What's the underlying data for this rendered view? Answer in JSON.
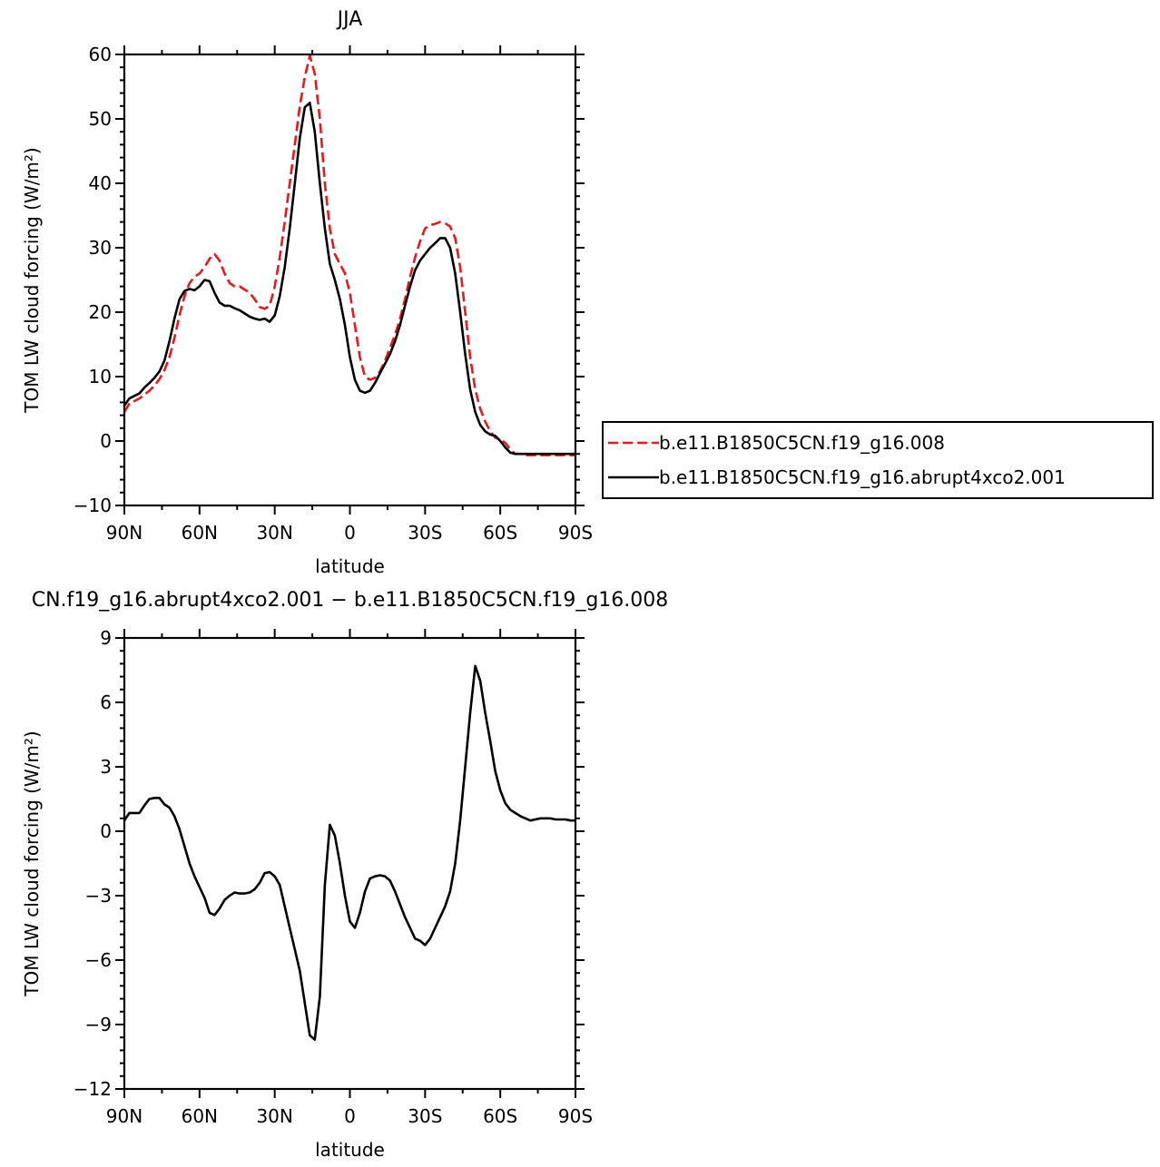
{
  "chart_data": [
    {
      "type": "line",
      "title": "JJA",
      "xlabel": "latitude",
      "ylabel": "TOM LW cloud forcing (W/m²)",
      "xlim": [
        90,
        -90
      ],
      "ylim": [
        -10,
        60
      ],
      "xticks": [
        90,
        60,
        30,
        0,
        -30,
        -60,
        -90
      ],
      "xtick_labels": [
        "90N",
        "60N",
        "30N",
        "0",
        "30S",
        "60S",
        "90S"
      ],
      "yticks": [
        -10,
        0,
        10,
        20,
        30,
        40,
        50,
        60
      ],
      "ytick_labels": [
        "−10",
        "0",
        "10",
        "20",
        "30",
        "40",
        "50",
        "60"
      ],
      "legend_position": "right",
      "series": [
        {
          "name": "b.e11.B1850C5CN.f19_g16.008",
          "color": "#e41a1c",
          "dash": "dashed",
          "x": [
            90,
            88,
            86,
            84,
            82,
            80,
            78,
            76,
            74,
            72,
            70,
            68,
            66,
            64,
            62,
            60,
            58,
            56,
            54,
            52,
            50,
            48,
            46,
            44,
            42,
            40,
            38,
            36,
            34,
            32,
            30,
            28,
            26,
            24,
            22,
            20,
            18,
            16,
            14,
            12,
            10,
            8,
            6,
            4,
            2,
            0,
            -2,
            -4,
            -6,
            -8,
            -10,
            -12,
            -14,
            -16,
            -18,
            -20,
            -22,
            -24,
            -26,
            -28,
            -30,
            -32,
            -34,
            -36,
            -38,
            -40,
            -42,
            -44,
            -46,
            -48,
            -50,
            -52,
            -54,
            -56,
            -58,
            -60,
            -62,
            -64,
            -66,
            -68,
            -70,
            -72,
            -74,
            -76,
            -78,
            -80,
            -82,
            -84,
            -86,
            -88,
            -90
          ],
          "y": [
            4.5,
            5.8,
            6.2,
            6.6,
            7.2,
            7.8,
            8.6,
            9.6,
            11.0,
            13.0,
            16.0,
            19.5,
            22.5,
            24.5,
            25.5,
            26.0,
            27.0,
            28.3,
            29.0,
            28.0,
            26.0,
            24.5,
            24.0,
            24.0,
            23.5,
            23.0,
            22.0,
            20.8,
            20.5,
            21.0,
            24.0,
            28.5,
            34.0,
            40.0,
            46.0,
            52.0,
            56.5,
            59.8,
            57.0,
            50.0,
            40.0,
            33.0,
            29.0,
            27.5,
            26.0,
            23.0,
            18.0,
            13.0,
            10.0,
            9.5,
            9.8,
            10.8,
            12.5,
            14.5,
            16.5,
            19.0,
            22.0,
            25.5,
            28.5,
            31.0,
            33.0,
            33.5,
            33.7,
            34.0,
            33.8,
            33.3,
            31.5,
            27.0,
            20.0,
            13.0,
            8.0,
            5.0,
            3.0,
            1.5,
            0.5,
            0.3,
            -0.3,
            -1.3,
            -2.0,
            -2.0,
            -2.2,
            -2.2,
            -2.2,
            -2.2,
            -2.2,
            -2.2,
            -2.2,
            -2.2,
            -2.2,
            -2.2,
            -2.2
          ]
        },
        {
          "name": "b.e11.B1850C5CN.f19_g16.abrupt4xco2.001",
          "color": "#000000",
          "dash": "solid",
          "x": [
            90,
            88,
            86,
            84,
            82,
            80,
            78,
            76,
            74,
            72,
            70,
            68,
            66,
            64,
            62,
            60,
            58,
            56,
            54,
            52,
            50,
            48,
            46,
            44,
            42,
            40,
            38,
            36,
            34,
            32,
            30,
            28,
            26,
            24,
            22,
            20,
            18,
            16,
            14,
            12,
            10,
            8,
            6,
            4,
            2,
            0,
            -2,
            -4,
            -6,
            -8,
            -10,
            -12,
            -14,
            -16,
            -18,
            -20,
            -22,
            -24,
            -26,
            -28,
            -30,
            -32,
            -34,
            -36,
            -38,
            -40,
            -42,
            -44,
            -46,
            -48,
            -50,
            -52,
            -54,
            -56,
            -58,
            -60,
            -62,
            -64,
            -66,
            -68,
            -70,
            -72,
            -74,
            -76,
            -78,
            -80,
            -82,
            -84,
            -86,
            -88,
            -90
          ],
          "y": [
            5.5,
            6.6,
            7.0,
            7.4,
            8.3,
            9.0,
            9.8,
            10.8,
            12.5,
            15.5,
            19.0,
            22.0,
            23.3,
            23.6,
            23.4,
            24.0,
            25.0,
            24.8,
            23.0,
            21.5,
            21.0,
            21.0,
            20.6,
            20.3,
            19.8,
            19.3,
            19.0,
            18.8,
            19.0,
            18.5,
            19.5,
            22.5,
            27.0,
            33.0,
            40.0,
            47.0,
            51.8,
            52.5,
            48.0,
            40.0,
            33.0,
            27.5,
            25.0,
            22.0,
            18.0,
            13.0,
            9.5,
            7.8,
            7.5,
            7.8,
            9.0,
            10.5,
            12.0,
            13.5,
            15.5,
            18.0,
            21.0,
            24.0,
            26.5,
            28.0,
            29.0,
            30.0,
            30.7,
            31.5,
            31.5,
            30.0,
            26.0,
            20.0,
            13.5,
            8.0,
            4.5,
            2.5,
            1.5,
            1.0,
            0.8,
            0.0,
            -1.0,
            -1.8,
            -2.0,
            -2.0,
            -2.0,
            -2.0,
            -2.0,
            -2.0,
            -2.0,
            -2.0,
            -2.0,
            -2.0,
            -2.0,
            -2.0,
            -2.0
          ]
        }
      ]
    },
    {
      "type": "line",
      "title": "CN.f19_g16.abrupt4xco2.001 − b.e11.B1850C5CN.f19_g16.008",
      "xlabel": "latitude",
      "ylabel": "TOM LW cloud forcing (W/m²)",
      "xlim": [
        90,
        -90
      ],
      "ylim": [
        -12,
        9
      ],
      "xticks": [
        90,
        60,
        30,
        0,
        -30,
        -60,
        -90
      ],
      "xtick_labels": [
        "90N",
        "60N",
        "30N",
        "0",
        "30S",
        "60S",
        "90S"
      ],
      "yticks": [
        -12,
        -9,
        -6,
        -3,
        0,
        3,
        6,
        9
      ],
      "ytick_labels": [
        "−12",
        "−9",
        "−6",
        "−3",
        "0",
        "3",
        "6",
        "9"
      ],
      "series": [
        {
          "color": "#000000",
          "dash": "solid",
          "x": [
            90,
            88,
            86,
            84,
            82,
            80,
            78,
            76,
            74,
            72,
            70,
            68,
            66,
            64,
            62,
            60,
            58,
            56,
            54,
            52,
            50,
            48,
            46,
            44,
            42,
            40,
            38,
            36,
            34,
            32,
            30,
            28,
            26,
            24,
            22,
            20,
            18,
            16,
            14,
            12,
            10,
            8,
            6,
            4,
            2,
            0,
            -2,
            -4,
            -6,
            -8,
            -10,
            -12,
            -14,
            -16,
            -18,
            -20,
            -22,
            -24,
            -26,
            -28,
            -30,
            -32,
            -34,
            -36,
            -38,
            -40,
            -42,
            -44,
            -46,
            -48,
            -50,
            -52,
            -54,
            -56,
            -58,
            -60,
            -62,
            -64,
            -66,
            -68,
            -70,
            -72,
            -74,
            -76,
            -78,
            -80,
            -82,
            -84,
            -86,
            -88,
            -90
          ],
          "y": [
            0.5,
            0.85,
            0.85,
            0.85,
            1.2,
            1.5,
            1.55,
            1.55,
            1.25,
            1.1,
            0.7,
            0.1,
            -0.7,
            -1.5,
            -2.1,
            -2.6,
            -3.1,
            -3.8,
            -3.9,
            -3.6,
            -3.2,
            -3.0,
            -2.85,
            -2.9,
            -2.9,
            -2.85,
            -2.7,
            -2.4,
            -1.95,
            -1.9,
            -2.1,
            -2.5,
            -3.5,
            -4.5,
            -5.5,
            -6.5,
            -8.0,
            -9.5,
            -9.7,
            -7.7,
            -2.5,
            0.3,
            -0.2,
            -1.5,
            -3.0,
            -4.2,
            -4.5,
            -3.8,
            -2.8,
            -2.2,
            -2.1,
            -2.05,
            -2.1,
            -2.3,
            -2.8,
            -3.4,
            -4.0,
            -4.5,
            -5.0,
            -5.1,
            -5.3,
            -5.0,
            -4.5,
            -4.0,
            -3.5,
            -2.8,
            -1.5,
            0.5,
            3.0,
            5.5,
            7.7,
            7.0,
            5.5,
            4.2,
            2.8,
            1.9,
            1.3,
            1.0,
            0.85,
            0.7,
            0.6,
            0.5,
            0.55,
            0.6,
            0.6,
            0.6,
            0.55,
            0.55,
            0.55,
            0.5,
            0.5
          ]
        }
      ]
    }
  ]
}
